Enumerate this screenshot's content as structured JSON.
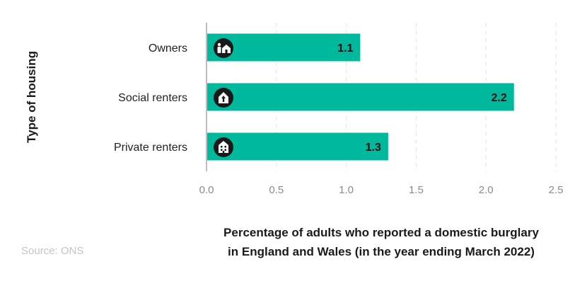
{
  "chart_data": {
    "type": "bar",
    "orientation": "horizontal",
    "categories": [
      "Owners",
      "Social renters",
      "Private renters"
    ],
    "values": [
      1.1,
      2.2,
      1.3
    ],
    "data_labels": [
      "1.1",
      "2.2",
      "1.3"
    ],
    "category_icons": [
      "person-house-icon",
      "house-arrow-icon",
      "apartment-building-icon"
    ],
    "xlim": [
      0,
      2.5
    ],
    "xticks": [
      "0.0",
      "0.5",
      "1.0",
      "1.5",
      "2.0",
      "2.5"
    ],
    "xlabel_lines": [
      "Percentage of adults who reported a domestic burglary",
      "in England and Wales (in the year ending March 2022)"
    ],
    "ylabel": "Type of housing",
    "grid": "vertical dashed",
    "bar_color": "#00b89c",
    "icon_bg_color": "#1a1a1a"
  },
  "source": "Source: ONS"
}
